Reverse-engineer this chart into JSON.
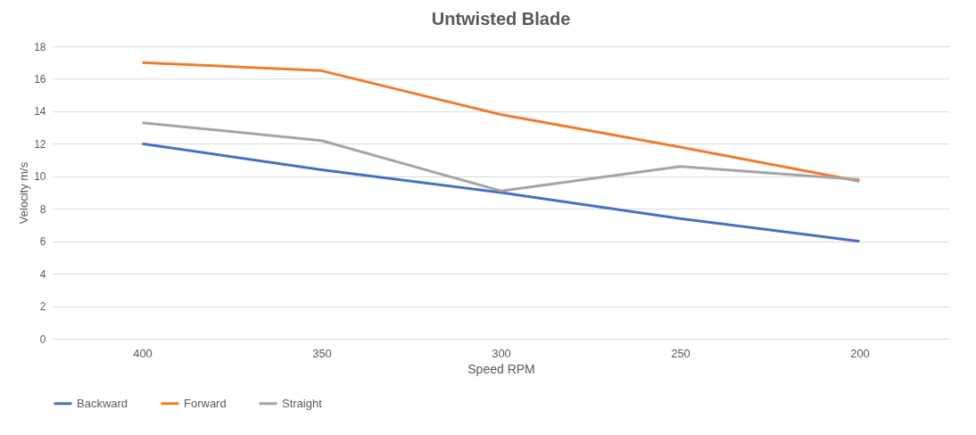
{
  "chart_data": {
    "type": "line",
    "title": "Untwisted Blade",
    "xlabel": "Speed RPM",
    "ylabel": "Velocity m/s",
    "categories": [
      "400",
      "350",
      "300",
      "250",
      "200"
    ],
    "series": [
      {
        "name": "Backward",
        "color": "#4472c4",
        "values": [
          12,
          10.4,
          9,
          7.4,
          6
        ]
      },
      {
        "name": "Forward",
        "color": "#ed7d31",
        "values": [
          17,
          16.5,
          13.8,
          11.8,
          9.7
        ]
      },
      {
        "name": "Straight",
        "color": "#a5a5a5",
        "values": [
          13.3,
          12.2,
          9.1,
          10.6,
          9.8
        ]
      }
    ],
    "ylim": [
      0,
      18
    ],
    "yticks": [
      0,
      2,
      4,
      6,
      8,
      10,
      12,
      14,
      16,
      18
    ],
    "grid": "y",
    "legend": "bottom",
    "marker": "none",
    "line_style": "solid"
  }
}
